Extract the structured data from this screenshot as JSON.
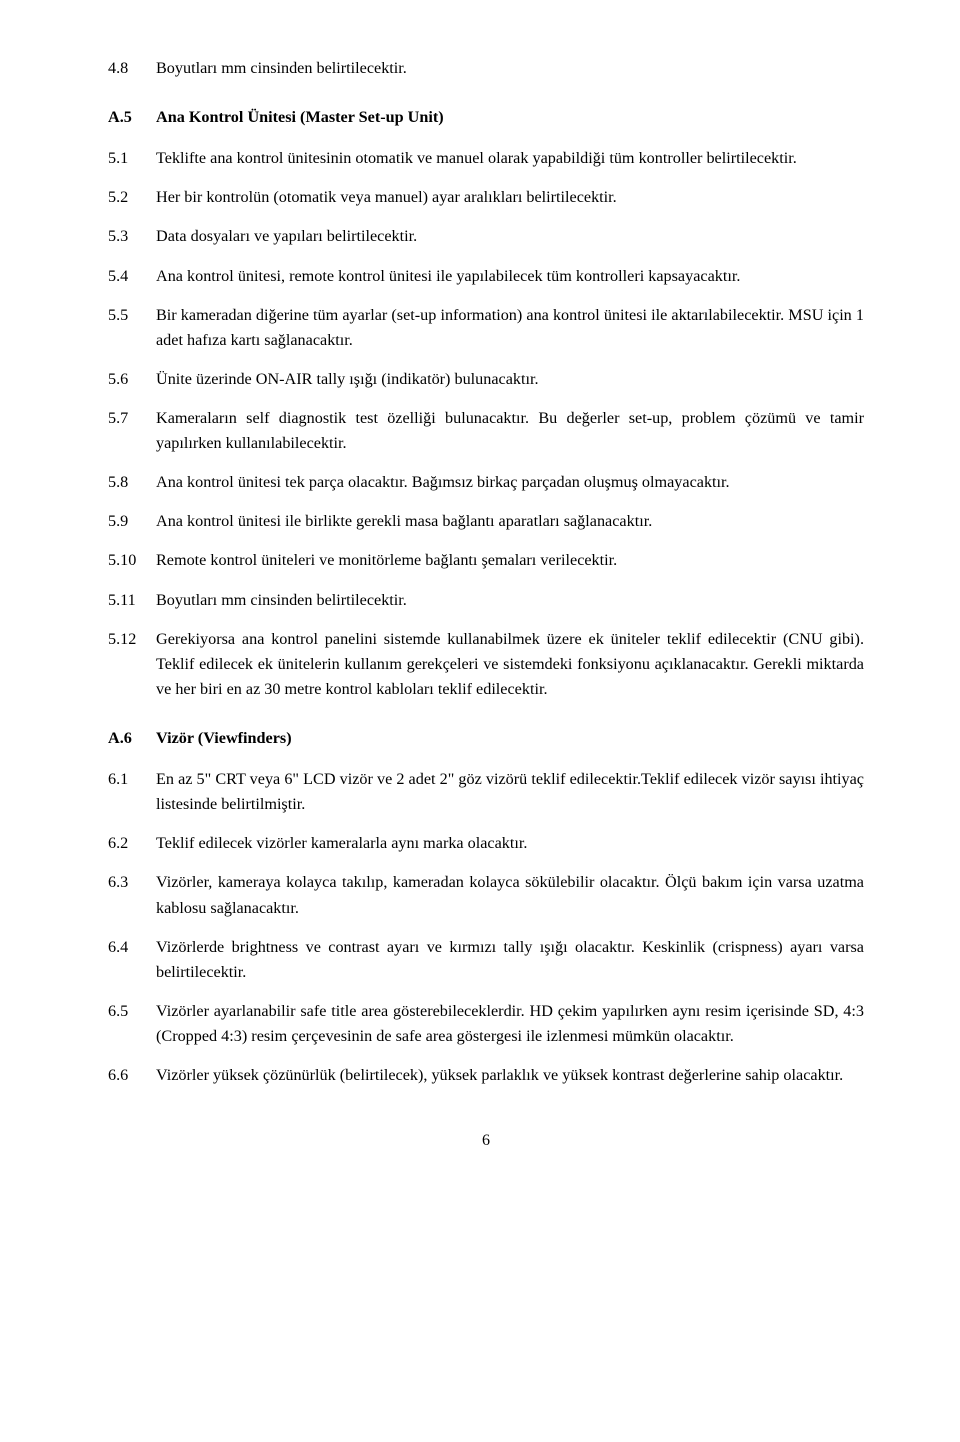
{
  "s4": {
    "items": [
      {
        "num": "4.8",
        "text": "Boyutları mm cinsinden belirtilecektir."
      }
    ]
  },
  "a5": {
    "num": "A.5",
    "title": "Ana Kontrol Ünitesi (Master Set-up Unit)",
    "items": [
      {
        "num": "5.1",
        "text": "Teklifte ana kontrol ünitesinin otomatik ve manuel olarak yapabildiği tüm kontroller belirtilecektir."
      },
      {
        "num": "5.2",
        "text": "Her bir kontrolün (otomatik veya manuel) ayar aralıkları belirtilecektir."
      },
      {
        "num": "5.3",
        "text": "Data dosyaları ve yapıları belirtilecektir."
      },
      {
        "num": "5.4",
        "text": "Ana kontrol ünitesi, remote kontrol ünitesi ile yapılabilecek tüm kontrolleri kapsayacaktır."
      },
      {
        "num": "5.5",
        "text": "Bir kameradan diğerine tüm ayarlar (set-up information) ana kontrol ünitesi ile aktarılabilecektir. MSU için 1 adet hafıza kartı sağlanacaktır."
      },
      {
        "num": "5.6",
        "text": "Ünite üzerinde ON-AIR tally ışığı (indikatör) bulunacaktır."
      },
      {
        "num": "5.7",
        "text": "Kameraların self diagnostik test özelliği bulunacaktır. Bu değerler set-up, problem çözümü ve tamir yapılırken kullanılabilecektir."
      },
      {
        "num": "5.8",
        "text": "Ana kontrol ünitesi tek parça olacaktır. Bağımsız birkaç parçadan oluşmuş olmayacaktır."
      },
      {
        "num": "5.9",
        "text": "Ana kontrol ünitesi ile birlikte gerekli masa bağlantı aparatları sağlanacaktır."
      },
      {
        "num": "5.10",
        "text": "Remote kontrol üniteleri ve monitörleme bağlantı şemaları verilecektir."
      },
      {
        "num": "5.11",
        "text": "Boyutları mm cinsinden belirtilecektir."
      },
      {
        "num": "5.12",
        "text": "Gerekiyorsa ana kontrol panelini sistemde kullanabilmek üzere ek üniteler teklif edilecektir (CNU gibi). Teklif edilecek ek ünitelerin kullanım gerekçeleri ve sistemdeki fonksiyonu açıklanacaktır. Gerekli miktarda ve her biri en az 30 metre kontrol kabloları teklif edilecektir."
      }
    ]
  },
  "a6": {
    "num": "A.6",
    "title": "Vizör (Viewfinders)",
    "items": [
      {
        "num": "6.1",
        "text": "En az 5\" CRT veya 6\" LCD vizör ve 2 adet 2\" göz vizörü teklif edilecektir.Teklif edilecek vizör sayısı ihtiyaç listesinde belirtilmiştir."
      },
      {
        "num": "6.2",
        "text": "Teklif edilecek vizörler kameralarla aynı marka olacaktır."
      },
      {
        "num": "6.3",
        "text": "Vizörler, kameraya kolayca takılıp, kameradan kolayca sökülebilir olacaktır. Ölçü bakım için varsa uzatma kablosu sağlanacaktır."
      },
      {
        "num": "6.4",
        "text": "Vizörlerde brightness ve contrast ayarı ve kırmızı tally ışığı olacaktır. Keskinlik (crispness) ayarı varsa belirtilecektir."
      },
      {
        "num": "6.5",
        "text": "Vizörler ayarlanabilir safe title area gösterebileceklerdir. HD çekim yapılırken aynı resim içerisinde SD, 4:3 (Cropped 4:3) resim çerçevesinin de safe area göstergesi ile izlenmesi mümkün olacaktır."
      },
      {
        "num": "6.6",
        "text": "Vizörler yüksek çözünürlük (belirtilecek), yüksek parlaklık ve yüksek kontrast değerlerine sahip olacaktır."
      }
    ]
  },
  "page_number": "6"
}
